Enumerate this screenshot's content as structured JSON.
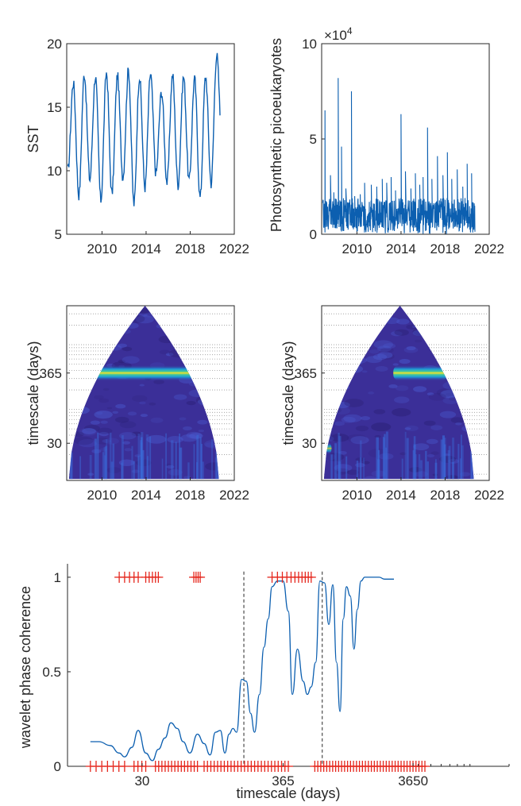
{
  "colors": {
    "line": "#0c5fb0",
    "marker": "#e5261c",
    "axis": "#262626",
    "dashed": "#262626",
    "grid": "#9a9a9a",
    "field_low": "#3b2f98",
    "field_mid": "#1d9ad6",
    "field_band": "#f3e12a",
    "field_core": "#f9c823"
  },
  "chart_data": [
    {
      "id": "sst",
      "type": "line",
      "title": "",
      "xlabel": "",
      "ylabel": "SST",
      "xlim": [
        2006.8,
        2022
      ],
      "ylim": [
        5,
        20
      ],
      "x_ticks": [
        2010,
        2014,
        2018,
        2022
      ],
      "x_tick_labels": [
        "2010",
        "2014",
        "2018",
        "2022"
      ],
      "y_ticks": [
        5,
        10,
        15,
        20
      ],
      "y_tick_labels": [
        "5",
        "10",
        "15",
        "20"
      ],
      "x_start": 2006.9,
      "x_end": 2020.7,
      "peaks": [
        16.9,
        17.6,
        17.4,
        17.7,
        17.5,
        17.9,
        17.4,
        17.6,
        16.2,
        17.5,
        17.4,
        17.2,
        17.4,
        19.1
      ],
      "troughs": [
        10.0,
        8.1,
        9.3,
        7.7,
        8.2,
        9.5,
        7.4,
        8.7,
        9.8,
        9.1,
        8.9,
        9.2,
        7.9,
        9.0,
        12.0
      ]
    },
    {
      "id": "pico",
      "type": "line",
      "title": "",
      "xlabel": "",
      "ylabel": "Photosynthetic picoeukaryotes",
      "exponent_label": "×10",
      "exponent_power": "4",
      "xlim": [
        2006.8,
        2022
      ],
      "ylim": [
        0,
        10
      ],
      "x_ticks": [
        2010,
        2014,
        2018,
        2022
      ],
      "x_tick_labels": [
        "2010",
        "2014",
        "2018",
        "2022"
      ],
      "y_ticks": [
        0,
        5,
        10
      ],
      "y_tick_labels": [
        "0",
        "5",
        "10"
      ],
      "x_start": 2006.9,
      "x_end": 2020.7,
      "spikes": [
        {
          "x": 2007.1,
          "y": 6.5
        },
        {
          "x": 2007.6,
          "y": 3.1
        },
        {
          "x": 2007.9,
          "y": 2.2
        },
        {
          "x": 2008.3,
          "y": 8.2
        },
        {
          "x": 2008.6,
          "y": 4.6
        },
        {
          "x": 2009.0,
          "y": 2.4
        },
        {
          "x": 2009.5,
          "y": 7.5
        },
        {
          "x": 2009.8,
          "y": 2.0
        },
        {
          "x": 2010.3,
          "y": 2.1
        },
        {
          "x": 2010.7,
          "y": 2.7
        },
        {
          "x": 2011.3,
          "y": 2.6
        },
        {
          "x": 2011.8,
          "y": 2.5
        },
        {
          "x": 2012.3,
          "y": 2.9
        },
        {
          "x": 2012.7,
          "y": 2.7
        },
        {
          "x": 2013.1,
          "y": 3.0
        },
        {
          "x": 2013.5,
          "y": 2.3
        },
        {
          "x": 2014.0,
          "y": 6.3
        },
        {
          "x": 2014.4,
          "y": 3.3
        },
        {
          "x": 2014.9,
          "y": 2.4
        },
        {
          "x": 2015.3,
          "y": 3.2
        },
        {
          "x": 2015.7,
          "y": 2.6
        },
        {
          "x": 2016.0,
          "y": 3.0
        },
        {
          "x": 2016.4,
          "y": 5.6
        },
        {
          "x": 2016.8,
          "y": 2.9
        },
        {
          "x": 2017.3,
          "y": 4.1
        },
        {
          "x": 2017.8,
          "y": 3.1
        },
        {
          "x": 2018.2,
          "y": 4.3
        },
        {
          "x": 2018.6,
          "y": 2.9
        },
        {
          "x": 2019.1,
          "y": 3.4
        },
        {
          "x": 2019.6,
          "y": 2.5
        },
        {
          "x": 2020.0,
          "y": 3.7
        },
        {
          "x": 2020.4,
          "y": 3.2
        }
      ]
    },
    {
      "id": "scalogram-sst",
      "type": "heatmap",
      "title": "",
      "xlabel": "",
      "ylabel": "timescale (days)",
      "xlim": [
        2006.8,
        2022
      ],
      "x_ticks": [
        2010,
        2014,
        2018,
        2022
      ],
      "x_tick_labels": [
        "2010",
        "2014",
        "2018",
        "2022"
      ],
      "y_scale": "log",
      "ylim": [
        8,
        4000
      ],
      "y_ticks": [
        30,
        365
      ],
      "y_tick_labels": [
        "30",
        "365"
      ],
      "y_grid": [
        10,
        20,
        30,
        40,
        50,
        60,
        70,
        80,
        90,
        100,
        200,
        300,
        400,
        500,
        600,
        700,
        800,
        900,
        1000,
        2000,
        3000
      ],
      "data_x_range": [
        2007.0,
        2020.6
      ],
      "cone_apex_x": 2013.9,
      "bands": [
        {
          "period": 365,
          "power": 1.0,
          "x_from": 2007.0,
          "x_to": 2020.6
        }
      ]
    },
    {
      "id": "scalogram-pico",
      "type": "heatmap",
      "title": "",
      "xlabel": "",
      "ylabel": "timescale (days)",
      "xlim": [
        2006.8,
        2022
      ],
      "x_ticks": [
        2010,
        2014,
        2018,
        2022
      ],
      "x_tick_labels": [
        "2010",
        "2014",
        "2018",
        "2022"
      ],
      "y_scale": "log",
      "ylim": [
        8,
        4000
      ],
      "y_ticks": [
        30,
        365
      ],
      "y_tick_labels": [
        "30",
        "365"
      ],
      "y_grid": [
        10,
        20,
        30,
        40,
        50,
        60,
        70,
        80,
        90,
        100,
        200,
        300,
        400,
        500,
        600,
        700,
        800,
        900,
        1000,
        2000,
        3000
      ],
      "data_x_range": [
        2007.0,
        2020.6
      ],
      "cone_apex_x": 2013.9,
      "bands": [
        {
          "period": 365,
          "power": 0.7,
          "x_from": 2007.0,
          "x_to": 2009.5
        },
        {
          "period": 365,
          "power": 1.0,
          "x_from": 2013.3,
          "x_to": 2018.2
        },
        {
          "period": 150,
          "power": 0.55,
          "x_from": 2007.0,
          "x_to": 2008.6
        },
        {
          "period": 25,
          "power": 0.6,
          "x_from": 2007.2,
          "x_to": 2007.7
        }
      ]
    },
    {
      "id": "coherence",
      "type": "line",
      "title": "",
      "xlabel": "timescale (days)",
      "ylabel": "wavelet phase coherence",
      "x_scale": "log",
      "xlim": [
        8,
        20000
      ],
      "ylim": [
        0,
        1.05
      ],
      "x_ticks": [
        30,
        365,
        3650
      ],
      "x_tick_labels": [
        "30",
        "365",
        "3650"
      ],
      "y_ticks": [
        0,
        0.5,
        1
      ],
      "y_tick_labels": [
        "0",
        "0.5",
        "1"
      ],
      "dashed_lines_x": [
        182,
        730
      ],
      "x": [
        12,
        14,
        17,
        20,
        22,
        25,
        28,
        32,
        36,
        40,
        45,
        50,
        56,
        62,
        70,
        80,
        90,
        100,
        110,
        120,
        130,
        140,
        150,
        160,
        175,
        190,
        205,
        220,
        240,
        260,
        280,
        300,
        330,
        365,
        400,
        430,
        470,
        520,
        560,
        600,
        650,
        700,
        760,
        820,
        880,
        940,
        1000,
        1060,
        1120,
        1200,
        1280,
        1360,
        1450,
        1550,
        1700,
        1850,
        2000,
        2200,
        2400,
        2600
      ],
      "y": [
        0.13,
        0.13,
        0.11,
        0.07,
        0.05,
        0.1,
        0.19,
        0.07,
        0.03,
        0.09,
        0.15,
        0.23,
        0.2,
        0.13,
        0.07,
        0.17,
        0.12,
        0.06,
        0.18,
        0.19,
        0.07,
        0.17,
        0.2,
        0.18,
        0.46,
        0.45,
        0.28,
        0.18,
        0.38,
        0.63,
        0.78,
        0.95,
        0.98,
        0.98,
        0.82,
        0.38,
        0.62,
        0.45,
        0.38,
        0.42,
        0.55,
        0.98,
        0.97,
        0.75,
        0.96,
        0.55,
        0.29,
        0.78,
        0.95,
        0.9,
        0.62,
        0.83,
        0.98,
        1.0,
        1.0,
        1.0,
        1.0,
        0.99,
        0.99,
        0.99
      ],
      "markers_y1": [
        20,
        22,
        24,
        26,
        28,
        32,
        34,
        36,
        38,
        40,
        75,
        78,
        81,
        84,
        300,
        330,
        360,
        390,
        420,
        450,
        480,
        510,
        540,
        570,
        600
      ],
      "markers_y0_ranges": [
        {
          "from": 12,
          "to": 22,
          "count": 7
        },
        {
          "from": 26,
          "to": 32,
          "count": 4
        },
        {
          "from": 38,
          "to": 80,
          "count": 14
        },
        {
          "from": 90,
          "to": 400,
          "count": 26
        },
        {
          "from": 640,
          "to": 4500,
          "count": 38
        }
      ],
      "minor_ticks_x": [
        4000,
        5000,
        6000,
        7000,
        8000,
        9000,
        10000,
        20000
      ]
    }
  ]
}
